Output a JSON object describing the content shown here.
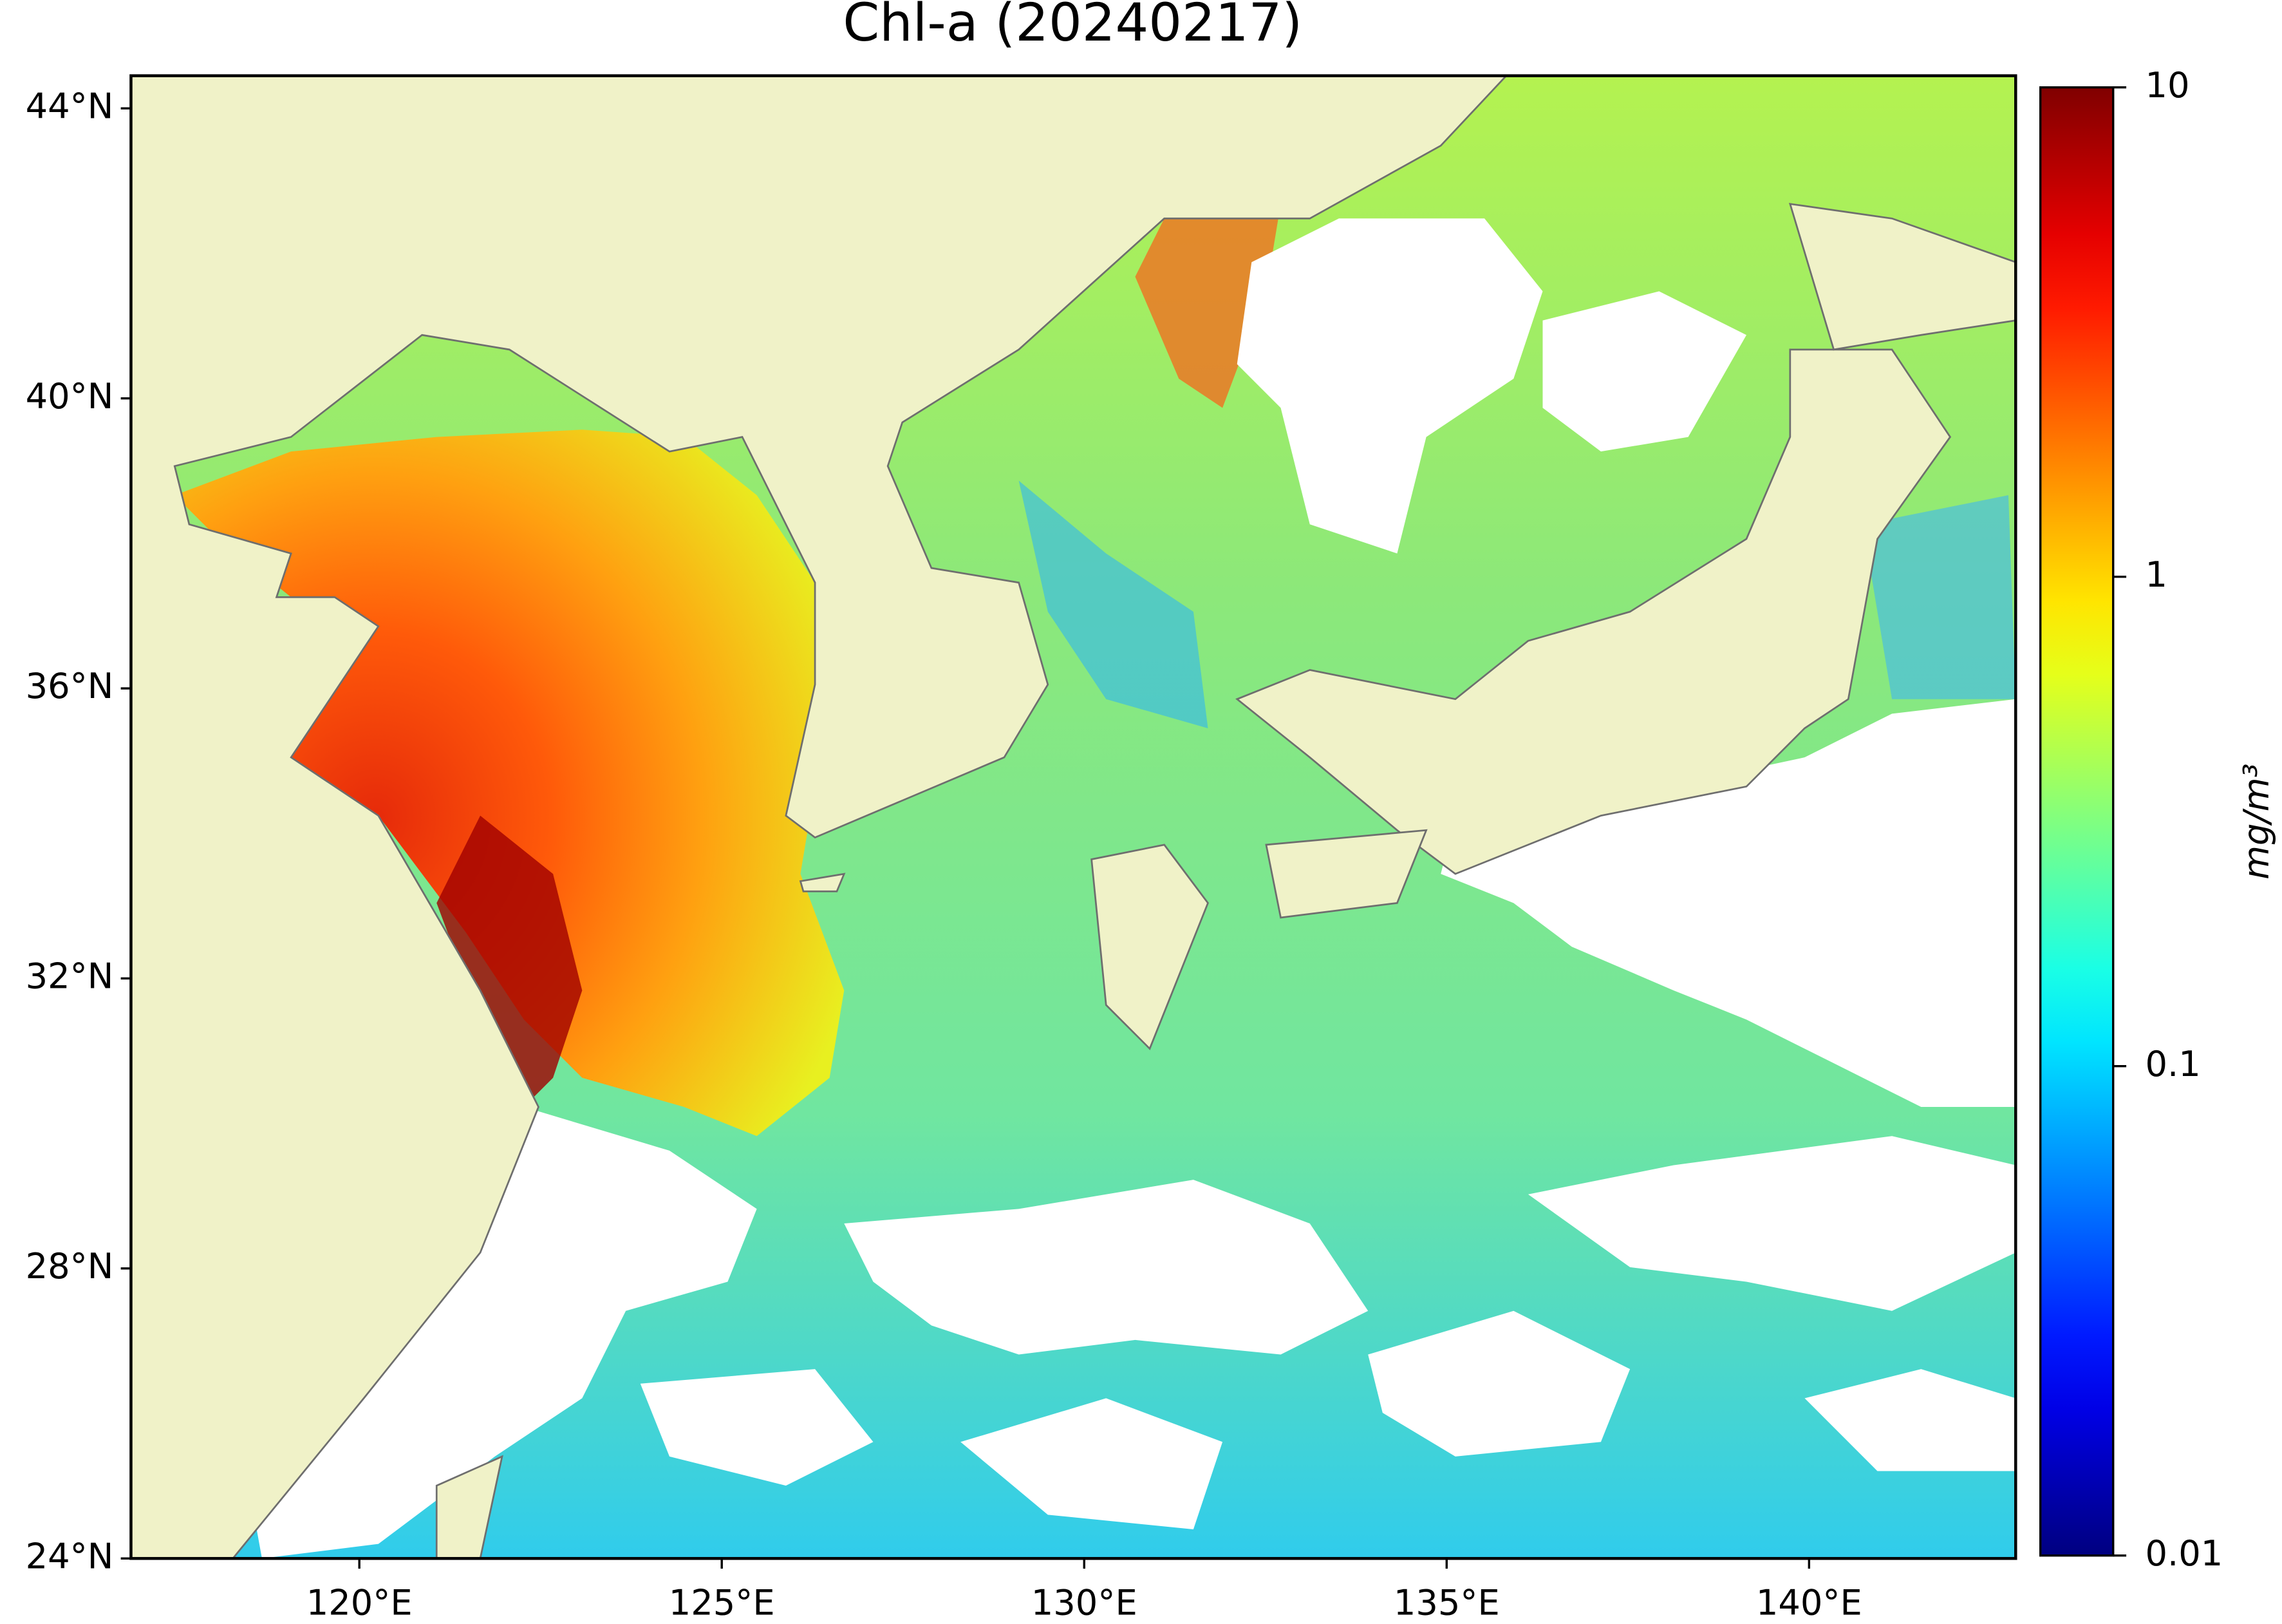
{
  "chart_data": {
    "type": "map",
    "title": "Chl-a (20240217)",
    "xlim": [
      116.85,
      142.85
    ],
    "ylim": [
      24,
      44.45
    ],
    "xticks": [
      {
        "value": 120,
        "label": "120°E"
      },
      {
        "value": 125,
        "label": "125°E"
      },
      {
        "value": 130,
        "label": "130°E"
      },
      {
        "value": 135,
        "label": "135°E"
      },
      {
        "value": 140,
        "label": "140°E"
      }
    ],
    "yticks": [
      {
        "value": 24,
        "label": "24°N"
      },
      {
        "value": 28,
        "label": "28°N"
      },
      {
        "value": 32,
        "label": "32°N"
      },
      {
        "value": 36,
        "label": "36°N"
      },
      {
        "value": 40,
        "label": "40°N"
      },
      {
        "value": 44,
        "label": "44°N"
      }
    ],
    "colorbar": {
      "colormap": "jet",
      "scale": "log",
      "lim": [
        0.01,
        10
      ],
      "ticks": [
        0.01,
        0.1,
        1,
        10
      ],
      "label": "mg/m³"
    }
  }
}
